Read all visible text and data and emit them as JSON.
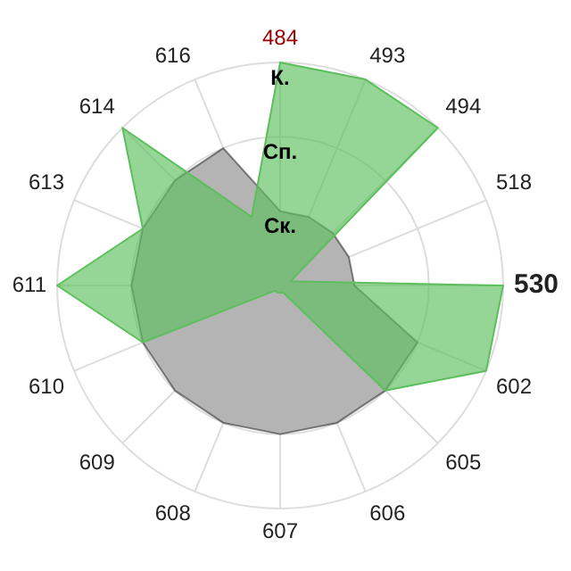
{
  "chart_data": {
    "type": "radar",
    "categories": [
      "484",
      "493",
      "494",
      "518",
      "530",
      "602",
      "605",
      "606",
      "607",
      "608",
      "609",
      "610",
      "611",
      "613",
      "614",
      "616"
    ],
    "ylim": [
      0,
      3
    ],
    "yticks": [
      {
        "value": 1,
        "label": "Ск."
      },
      {
        "value": 2,
        "label": "Сп."
      },
      {
        "value": 3,
        "label": "К."
      }
    ],
    "grid": true,
    "legend": false,
    "marker": "none",
    "series": [
      {
        "color": "#b4b4b4",
        "values": [
          1,
          1,
          1,
          1,
          1,
          2,
          2,
          2,
          2,
          2,
          2,
          2,
          2,
          2,
          2,
          2
        ]
      },
      {
        "color": "#5cbf5c",
        "values": [
          3,
          3,
          3,
          0.15,
          3,
          3,
          2,
          0.1,
          0.1,
          0.1,
          0.1,
          2,
          3,
          2,
          3,
          1
        ]
      }
    ]
  }
}
